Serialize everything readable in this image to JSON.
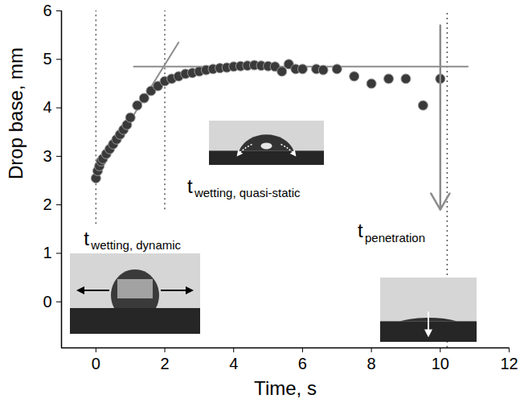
{
  "chart_data": {
    "type": "scatter",
    "x_label": "Time, s",
    "y_label": "Drop base, mm",
    "x": [
      0,
      0.05,
      0.1,
      0.15,
      0.2,
      0.3,
      0.4,
      0.5,
      0.6,
      0.7,
      0.8,
      0.9,
      1.0,
      1.2,
      1.4,
      1.6,
      1.8,
      2.0,
      2.2,
      2.4,
      2.6,
      2.8,
      3.0,
      3.2,
      3.4,
      3.6,
      3.8,
      4.0,
      4.2,
      4.4,
      4.6,
      4.8,
      5.0,
      5.2,
      5.4,
      5.6,
      5.8,
      6.0,
      6.4,
      6.6,
      7.0,
      7.5,
      8.0,
      8.5,
      9.0,
      9.5,
      10.0
    ],
    "values": [
      2.55,
      2.7,
      2.8,
      2.9,
      2.95,
      3.05,
      3.15,
      3.25,
      3.35,
      3.45,
      3.55,
      3.65,
      3.8,
      4.05,
      4.2,
      4.35,
      4.45,
      4.55,
      4.6,
      4.65,
      4.7,
      4.72,
      4.75,
      4.78,
      4.8,
      4.82,
      4.83,
      4.85,
      4.86,
      4.87,
      4.88,
      4.87,
      4.86,
      4.85,
      4.75,
      4.9,
      4.8,
      4.8,
      4.8,
      4.78,
      4.8,
      4.65,
      4.5,
      4.6,
      4.6,
      4.05,
      4.6
    ],
    "color": "#3a3a3a",
    "marker": "circle",
    "xlim": [
      -1,
      12
    ],
    "xticks": [
      0,
      2,
      4,
      6,
      8,
      10,
      12
    ],
    "ylim": [
      -0.95,
      6
    ],
    "yticks": [
      0,
      1,
      2,
      3,
      4,
      5,
      6
    ],
    "grid": false,
    "fit_lines": [
      {
        "x": [
          0.05,
          2.4
        ],
        "y": [
          2.65,
          5.35
        ]
      },
      {
        "x": [
          1.1,
          10.8
        ],
        "y": [
          4.85,
          4.85
        ]
      }
    ],
    "guide_lines": [
      {
        "x": 0,
        "y": [
          1.6,
          6
        ]
      },
      {
        "x": 2,
        "y": [
          1.9,
          6
        ]
      },
      {
        "x": 10.2,
        "y": [
          -0.95,
          6
        ]
      }
    ],
    "arrow": {
      "x": 10,
      "y": [
        5.7,
        1.9
      ]
    },
    "annotations": [
      {
        "text": "t",
        "subscript": "wetting, dynamic",
        "x": -0.35,
        "y": 1.3
      },
      {
        "text": "t",
        "subscript": "wetting, quasi-static",
        "x": 2.65,
        "y": 2.37
      },
      {
        "text": "t",
        "subscript": "penetration",
        "x": 7.6,
        "y": 1.45
      }
    ]
  }
}
